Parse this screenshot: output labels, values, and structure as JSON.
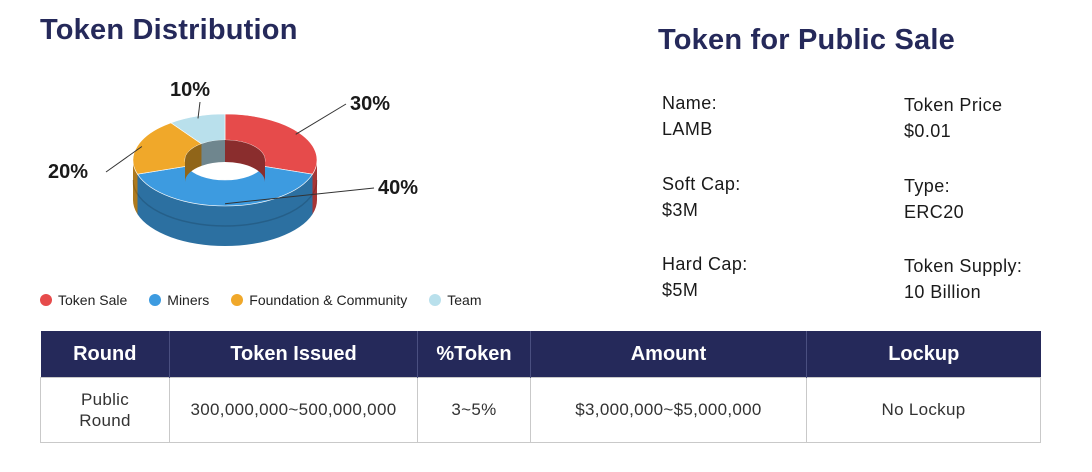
{
  "distribution": {
    "title": "Token Distribution"
  },
  "chart_data": {
    "type": "pie",
    "variant": "donut",
    "labels": [
      "Token Sale",
      "Miners",
      "Foundation & Community",
      "Team"
    ],
    "values": [
      30,
      40,
      20,
      10
    ],
    "value_labels": [
      "30%",
      "40%",
      "20%",
      "10%"
    ],
    "colors": [
      "#e64b4b",
      "#3d9be0",
      "#f0a82a",
      "#b9e0ec"
    ],
    "legend_placement": "bottom"
  },
  "sale": {
    "title": "Token for Public Sale",
    "fields": [
      {
        "label": "Name:",
        "value": "LAMB"
      },
      {
        "label": "Token Price",
        "value": "$0.01"
      },
      {
        "label": "Soft Cap:",
        "value": "$3M"
      },
      {
        "label": "Type:",
        "value": "ERC20"
      },
      {
        "label": "Hard Cap:",
        "value": "$5M"
      },
      {
        "label": "Token Supply:",
        "value": "10 Billion"
      }
    ]
  },
  "table": {
    "headers": [
      "Round",
      "Token Issued",
      "%Token",
      "Amount",
      "Lockup"
    ],
    "rows": [
      [
        "Public\nRound",
        "300,000,000~500,000,000",
        "3~5%",
        "$3,000,000~$5,000,000",
        "No Lockup"
      ]
    ]
  }
}
